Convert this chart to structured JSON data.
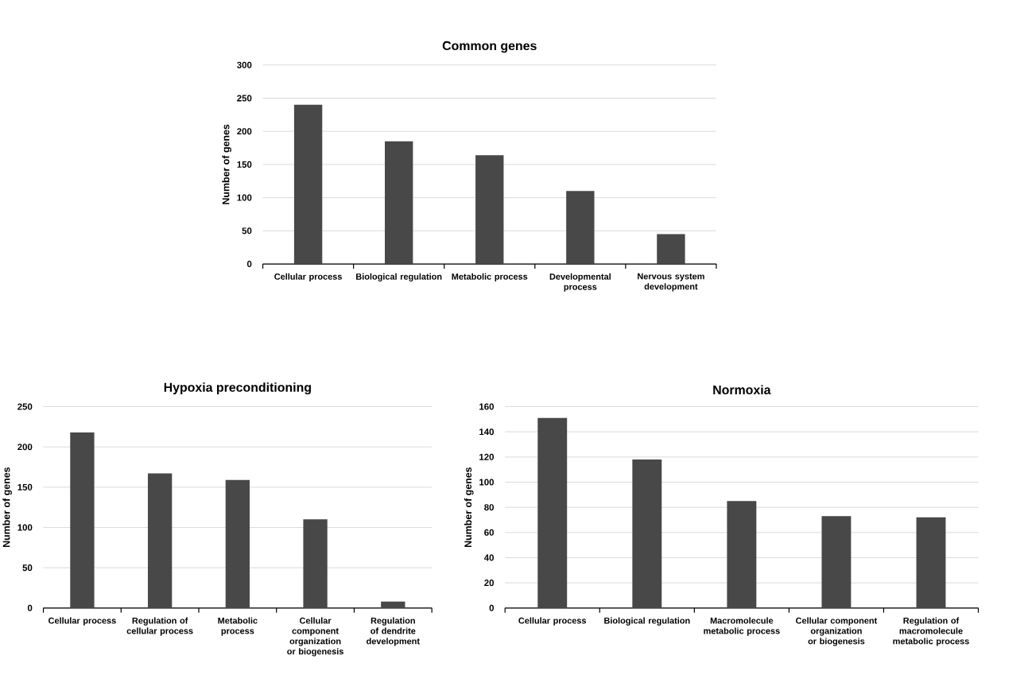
{
  "chart_data": [
    {
      "type": "bar",
      "title": "Common genes",
      "ylabel": "Number of genes",
      "categories": [
        "Cellular process",
        "Biological regulation",
        "Metabolic process",
        "Developmental process",
        "Nervous system development"
      ],
      "values": [
        240,
        185,
        164,
        110,
        45
      ],
      "color": "#484848",
      "ylim": [
        0,
        300
      ],
      "yticks": [
        0,
        50,
        100,
        150,
        200,
        250,
        300
      ],
      "grid": "y"
    },
    {
      "type": "bar",
      "title": "Hypoxia preconditioning",
      "ylabel": "Number of genes",
      "categories": [
        "Cellular process",
        "Regulation of cellular process",
        "Metabolic process",
        "Cellular component organization or biogenesis",
        "Regulation of dendrite development"
      ],
      "values": [
        218,
        167,
        159,
        110,
        8
      ],
      "color": "#484848",
      "ylim": [
        0,
        250
      ],
      "yticks": [
        0,
        50,
        100,
        150,
        200,
        250
      ],
      "grid": "y"
    },
    {
      "type": "bar",
      "title": "Normoxia",
      "ylabel": "Number of genes",
      "categories": [
        "Cellular process",
        "Biological regulation",
        "Macromolecule metabolic process",
        "Cellular component organization or biogenesis",
        "Regulation of macromolecule metabolic process"
      ],
      "values": [
        151,
        118,
        85,
        73,
        72
      ],
      "color": "#484848",
      "ylim": [
        0,
        160
      ],
      "yticks": [
        0,
        20,
        40,
        60,
        80,
        100,
        120,
        140,
        160
      ],
      "grid": "y"
    }
  ]
}
